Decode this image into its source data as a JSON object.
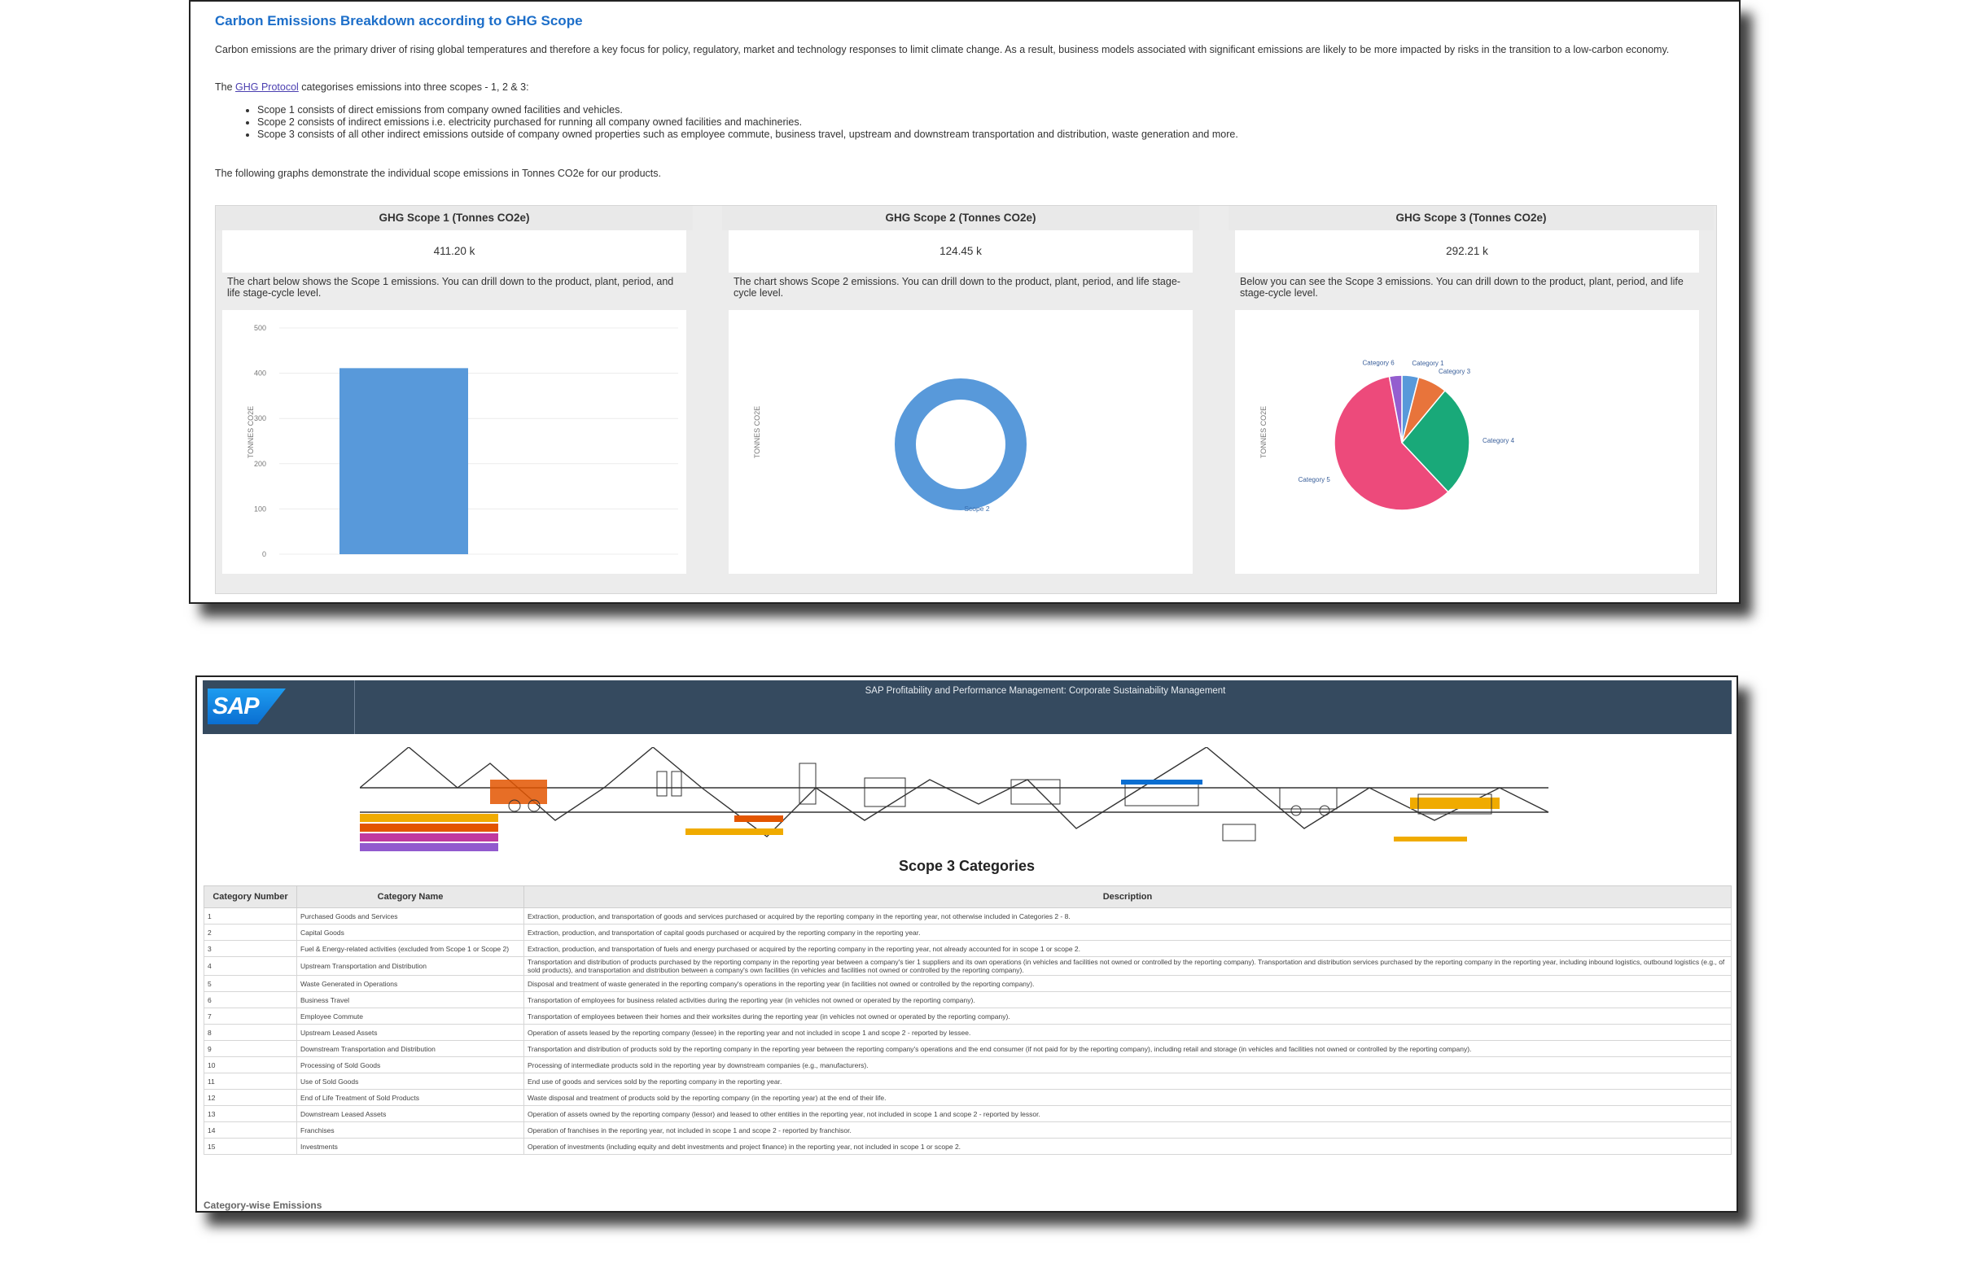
{
  "story": {
    "title": "Carbon Emissions Breakdown according to GHG Scope",
    "intro": "Carbon emissions are the primary driver of rising global temperatures and therefore a key focus for policy, regulatory, market and technology responses to limit climate change. As a result, business models associated with significant emissions are likely to be more impacted by risks in the transition to a low-carbon economy.",
    "protocol_prefix": "The ",
    "protocol_link": "GHG Protocol",
    "protocol_suffix": " categorises emissions into three scopes - 1, 2 & 3:",
    "scopes": [
      "Scope 1 consists of direct emissions from company owned facilities and vehicles.",
      "Scope 2 consists of indirect emissions i.e. electricity purchased for running all company owned facilities and machineries.",
      "Scope 3 consists of all other indirect emissions outside of company owned properties such as employee commute, business travel, upstream and downstream transportation and distribution, waste generation and more."
    ],
    "following": "The following graphs demonstrate the individual scope emissions in Tonnes CO2e for our products."
  },
  "panels": [
    {
      "header": "GHG Scope 1 (Tonnes CO2e)",
      "kpi": "411.20 k",
      "desc": "The chart below shows the Scope 1 emissions. You can drill down to the product, plant, period, and life stage-cycle level.",
      "y_axis_label": "TONNES CO2E"
    },
    {
      "header": "GHG Scope 2 (Tonnes CO2e)",
      "kpi": "124.45 k",
      "desc": "The chart shows Scope 2 emissions. You can drill down to the product, plant, period, and life stage-cycle level.",
      "y_axis_label": "TONNES CO2E"
    },
    {
      "header": "GHG Scope 3 (Tonnes CO2e)",
      "kpi": "292.21 k",
      "desc": "Below you can see the Scope 3 emissions. You can drill down to the product, plant, period, and life stage-cycle level.",
      "y_axis_label": "TONNES CO2E"
    }
  ],
  "chart_data": [
    {
      "type": "bar",
      "categories": [
        ""
      ],
      "values": [
        411.2
      ],
      "ylim": [
        0,
        500
      ],
      "yticks": [
        0,
        100,
        200,
        300,
        400,
        500
      ],
      "ylabel": "TONNES CO2E",
      "color": "#5899da"
    },
    {
      "type": "pie",
      "donut": true,
      "labels": [
        "Scope 2"
      ],
      "values": [
        124.45
      ],
      "colors": [
        "#5899da"
      ],
      "ylabel": "TONNES CO2E"
    },
    {
      "type": "pie",
      "labels": [
        "Category 1",
        "Category 3",
        "Category 4",
        "Category 5",
        "Category 6"
      ],
      "values": [
        4,
        7,
        27,
        59,
        3
      ],
      "colors": [
        "#5899da",
        "#e8743b",
        "#19a979",
        "#ed4a7b",
        "#945ecf"
      ],
      "ylabel": "TONNES CO2E"
    }
  ],
  "sap": {
    "logo": "SAP",
    "title": "SAP Profitability and Performance Management: Corporate Sustainability Management",
    "scope3_heading": "Scope 3 Categories",
    "columns": [
      "Category Number",
      "Category Name",
      "Description"
    ],
    "rows": [
      {
        "num": "1",
        "name": "Purchased Goods and Services",
        "desc": "Extraction, production, and transportation of goods and services purchased or acquired by the reporting company in the reporting year, not otherwise included in Categories 2 - 8."
      },
      {
        "num": "2",
        "name": "Capital Goods",
        "desc": "Extraction, production, and transportation of capital goods purchased or acquired by the reporting company in the reporting year."
      },
      {
        "num": "3",
        "name": "Fuel & Energy-related activities (excluded from Scope 1 or Scope 2)",
        "desc": "Extraction, production, and transportation of fuels and energy purchased or acquired by the reporting company in the reporting year, not already accounted for in scope 1 or scope 2."
      },
      {
        "num": "4",
        "name": "Upstream Transportation and Distribution",
        "desc": "Transportation and distribution of products purchased by the reporting company in the reporting year between a company's tier 1 suppliers and its own operations (in vehicles and facilities not owned or controlled by the reporting company). Transportation and distribution services purchased by the reporting company in the reporting year, including inbound logistics, outbound logistics (e.g., of sold products), and transportation and distribution between a company's own facilities (in vehicles and facilities not owned or controlled by the reporting company)."
      },
      {
        "num": "5",
        "name": "Waste Generated in Operations",
        "desc": "Disposal and treatment of waste generated in the reporting company's operations in the reporting year (in facilities not owned or controlled by the reporting company)."
      },
      {
        "num": "6",
        "name": "Business Travel",
        "desc": "Transportation of employees for business related activities during the reporting year (in vehicles not owned or operated by the reporting company)."
      },
      {
        "num": "7",
        "name": "Employee Commute",
        "desc": "Transportation of employees between their homes and their worksites during the reporting year (in vehicles not owned or operated by the reporting company)."
      },
      {
        "num": "8",
        "name": "Upstream Leased Assets",
        "desc": "Operation of assets leased by the reporting company (lessee) in the reporting year and not included in scope 1 and scope 2 - reported by lessee."
      },
      {
        "num": "9",
        "name": "Downstream Transportation and Distribution",
        "desc": "Transportation and distribution of products sold by the reporting company in the reporting year between the reporting company's operations and the end consumer (if not paid for by the reporting company), including retail and storage (in vehicles and facilities not owned or controlled by the reporting company)."
      },
      {
        "num": "10",
        "name": "Processing of Sold Goods",
        "desc": "Processing of intermediate products sold in the reporting year by downstream companies (e.g., manufacturers)."
      },
      {
        "num": "11",
        "name": "Use of Sold Goods",
        "desc": "End use of goods and services sold by the reporting company in the reporting year."
      },
      {
        "num": "12",
        "name": "End of Life Treatment of Sold Products",
        "desc": "Waste disposal and treatment of products sold by the reporting company (in the reporting year) at the end of their life."
      },
      {
        "num": "13",
        "name": "Downstream Leased Assets",
        "desc": "Operation of assets owned by the reporting company (lessor) and leased to other entities in the reporting year, not included in scope 1 and scope 2 - reported by lessor."
      },
      {
        "num": "14",
        "name": "Franchises",
        "desc": "Operation of franchises in the reporting year, not included in scope 1 and scope 2 - reported by franchisor."
      },
      {
        "num": "15",
        "name": "Investments",
        "desc": "Operation of investments (including equity and debt investments and project finance) in the reporting year, not included in scope 1 or scope 2."
      }
    ],
    "footer_label": "Category-wise Emissions"
  }
}
